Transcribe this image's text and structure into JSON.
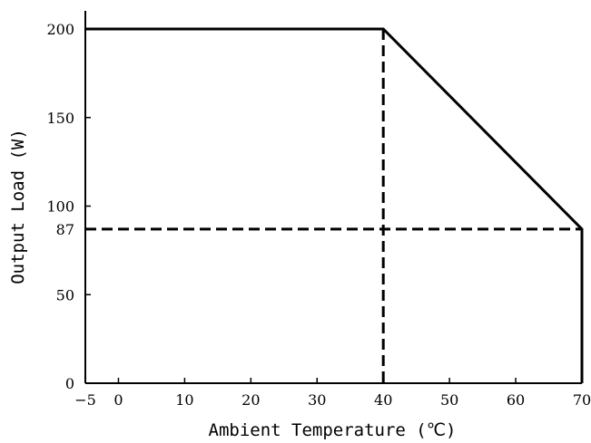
{
  "chart_data": {
    "type": "line",
    "title": "",
    "xlabel": "Ambient Temperature (℃)",
    "ylabel": "Output Load (W)",
    "xlim": [
      -5,
      70
    ],
    "ylim": [
      0,
      200
    ],
    "x_ticks": [
      -5,
      0,
      10,
      20,
      30,
      40,
      50,
      60,
      70
    ],
    "y_ticks": [
      0,
      50,
      87,
      100,
      150,
      200
    ],
    "grid": false,
    "legend": "none",
    "series": [
      {
        "style": "solid",
        "color": "#000000",
        "points": [
          [
            -5,
            200
          ],
          [
            40,
            200
          ],
          [
            70,
            87
          ],
          [
            70,
            0
          ]
        ]
      },
      {
        "style": "dashed",
        "color": "#000000",
        "points": [
          [
            40,
            200
          ],
          [
            40,
            0
          ]
        ]
      },
      {
        "style": "dashed",
        "color": "#000000",
        "points": [
          [
            -5,
            87
          ],
          [
            70,
            87
          ]
        ]
      }
    ]
  }
}
